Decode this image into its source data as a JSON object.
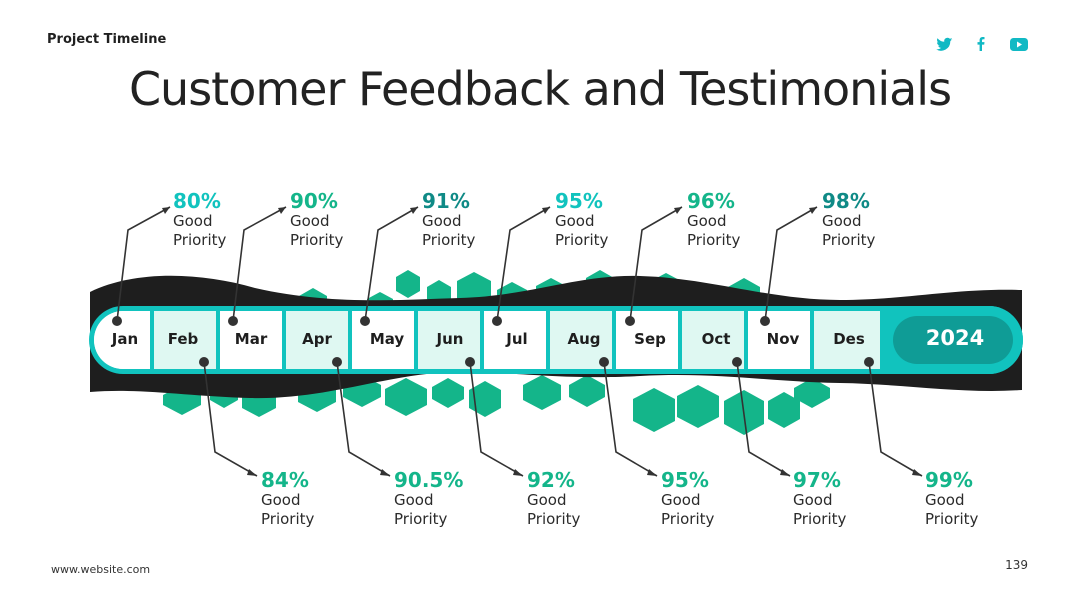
{
  "header": {
    "top_label": "Project Timeline",
    "title": "Customer Feedback and Testimonials"
  },
  "social_icons": [
    "twitter-icon",
    "facebook-icon",
    "youtube-icon"
  ],
  "footer": {
    "website": "www.website.com",
    "page_number": "139"
  },
  "colors": {
    "accent_teal": "#11c3be",
    "accent_green": "#14b58a",
    "dark_band": "#1e1e1e",
    "cell_fill": "#dff8f2",
    "year_fill": "#0f9c96"
  },
  "timeline": {
    "year": "2024",
    "months": [
      {
        "label": "Jan",
        "pct": "80%",
        "text1": "Good",
        "text2": "Priority",
        "pct_color": "#11c3be"
      },
      {
        "label": "Feb",
        "pct": "84%",
        "text1": "Good",
        "text2": "Priority",
        "pct_color": "#14b58a"
      },
      {
        "label": "Mar",
        "pct": "90%",
        "text1": "Good",
        "text2": "Priority",
        "pct_color": "#14b58a"
      },
      {
        "label": "Apr",
        "pct": "90.5%",
        "text1": "Good",
        "text2": "Priority",
        "pct_color": "#14b58a"
      },
      {
        "label": "May",
        "pct": "91%",
        "text1": "Good",
        "text2": "Priority",
        "pct_color": "#0f8a86"
      },
      {
        "label": "Jun",
        "pct": "92%",
        "text1": "Good",
        "text2": "Priority",
        "pct_color": "#14b58a"
      },
      {
        "label": "Jul",
        "pct": "95%",
        "text1": "Good",
        "text2": "Priority",
        "pct_color": "#11c3be"
      },
      {
        "label": "Aug",
        "pct": "95%",
        "text1": "Good",
        "text2": "Priority",
        "pct_color": "#14b58a"
      },
      {
        "label": "Sep",
        "pct": "96%",
        "text1": "Good",
        "text2": "Priority",
        "pct_color": "#14b58a"
      },
      {
        "label": "Oct",
        "pct": "97%",
        "text1": "Good",
        "text2": "Priority",
        "pct_color": "#14b58a"
      },
      {
        "label": "Nov",
        "pct": "98%",
        "text1": "Good",
        "text2": "Priority",
        "pct_color": "#0f8a86"
      },
      {
        "label": "Des",
        "pct": "99%",
        "text1": "Good",
        "text2": "Priority",
        "pct_color": "#14b58a"
      }
    ]
  }
}
